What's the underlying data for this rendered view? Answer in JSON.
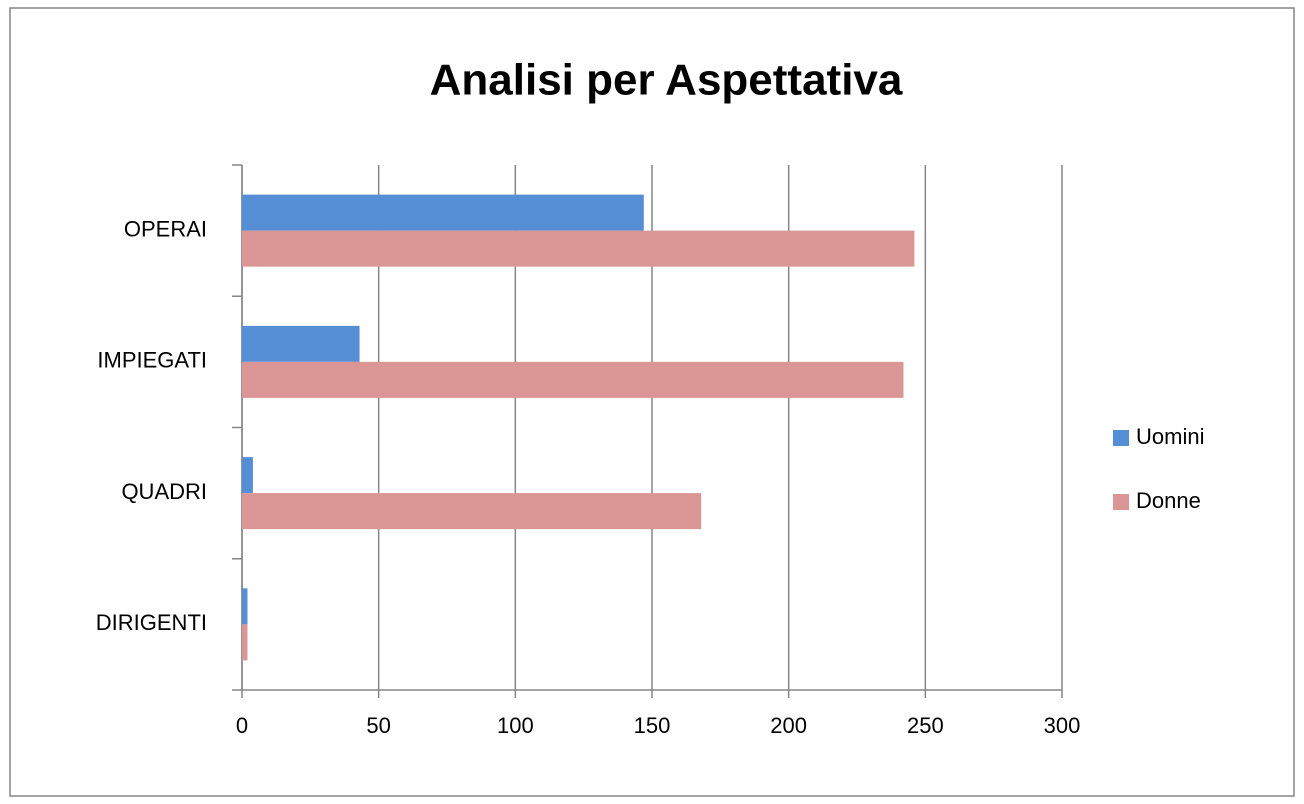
{
  "chart_data": {
    "type": "bar",
    "orientation": "horizontal",
    "title": "Analisi per Aspettativa",
    "categories": [
      "OPERAI",
      "IMPIEGATI",
      "QUADRI",
      "DIRIGENTI"
    ],
    "series": [
      {
        "name": "Uomini",
        "color": "#558ed5",
        "values": [
          147,
          43,
          4,
          2
        ]
      },
      {
        "name": "Donne",
        "color": "#d99694",
        "values": [
          246,
          242,
          168,
          2
        ]
      }
    ],
    "xlim": [
      0,
      300
    ],
    "xticks": [
      0,
      50,
      100,
      150,
      200,
      250,
      300
    ],
    "grid": true,
    "legend": "right"
  }
}
